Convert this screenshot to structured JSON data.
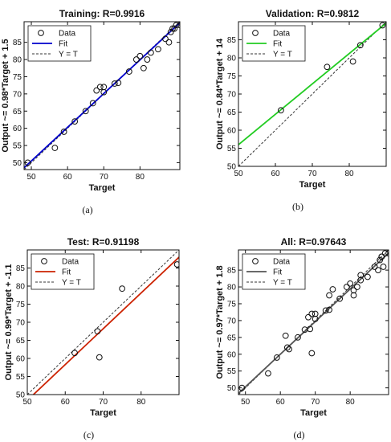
{
  "chart_data": [
    {
      "type": "scatter",
      "title": "Training: R=0.9916",
      "xlabel": "Target",
      "ylabel": "Output ~= 0.98*Target + 1.5",
      "caption": "(a)",
      "xlim": [
        48,
        91
      ],
      "ylim": [
        48,
        91
      ],
      "xticks": [
        50,
        60,
        70,
        80
      ],
      "yticks": [
        50,
        55,
        60,
        65,
        70,
        75,
        80,
        85
      ],
      "grid": false,
      "legend_position": "top-left",
      "fit_color": "#0000cc",
      "fit": {
        "slope": 0.98,
        "intercept": 1.5
      },
      "series": [
        {
          "name": "Data",
          "x": [
            49,
            56.5,
            59,
            62,
            65,
            67,
            68,
            69,
            70,
            70,
            73,
            74,
            77,
            79,
            80,
            81,
            82,
            83,
            85,
            87,
            88,
            88.5,
            89,
            89.5,
            90,
            91
          ],
          "y": [
            50,
            54.3,
            59,
            62,
            65,
            67.3,
            71,
            72,
            72,
            70.5,
            73,
            73.2,
            76.5,
            80,
            81,
            77.5,
            80,
            82,
            83,
            86,
            85,
            88,
            89,
            89,
            90,
            90
          ]
        },
        {
          "name": "Fit"
        },
        {
          "name": "Y = T"
        }
      ]
    },
    {
      "type": "scatter",
      "title": "Validation: R=0.9812",
      "xlabel": "Target",
      "ylabel": "Output ~= 0.84*Target + 14",
      "caption": "(b)",
      "xlim": [
        50,
        90
      ],
      "ylim": [
        50,
        90
      ],
      "xticks": [
        50,
        60,
        70,
        80
      ],
      "yticks": [
        50,
        55,
        60,
        65,
        70,
        75,
        80,
        85
      ],
      "grid": false,
      "legend_position": "top-left",
      "fit_color": "#22cc22",
      "fit": {
        "slope": 0.84,
        "intercept": 14
      },
      "series": [
        {
          "name": "Data",
          "x": [
            61.5,
            74,
            81,
            83,
            89
          ],
          "y": [
            65.5,
            77.5,
            79,
            83.5,
            89
          ]
        },
        {
          "name": "Fit"
        },
        {
          "name": "Y = T"
        }
      ]
    },
    {
      "type": "scatter",
      "title": "Test: R=0.91198",
      "xlabel": "Target",
      "ylabel": "Output ~= 0.99*Target + -1.1",
      "caption": "(c)",
      "xlim": [
        50,
        90
      ],
      "ylim": [
        50,
        90
      ],
      "xticks": [
        50,
        60,
        70,
        80
      ],
      "yticks": [
        50,
        55,
        60,
        65,
        70,
        75,
        80,
        85
      ],
      "grid": false,
      "legend_position": "top-left",
      "fit_color": "#cc2200",
      "fit": {
        "slope": 0.99,
        "intercept": -1.1
      },
      "series": [
        {
          "name": "Data",
          "x": [
            62.5,
            68.5,
            69,
            75,
            89.5
          ],
          "y": [
            61.5,
            67.5,
            60.3,
            79.3,
            86
          ]
        },
        {
          "name": "Fit"
        },
        {
          "name": "Y = T"
        }
      ]
    },
    {
      "type": "scatter",
      "title": "All: R=0.97643",
      "xlabel": "Target",
      "ylabel": "Output ~= 0.97*Target + 1.8",
      "caption": "(d)",
      "xlim": [
        48,
        91
      ],
      "ylim": [
        48,
        91
      ],
      "xticks": [
        50,
        60,
        70,
        80
      ],
      "yticks": [
        50,
        55,
        60,
        65,
        70,
        75,
        80,
        85
      ],
      "grid": false,
      "legend_position": "top-left",
      "fit_color": "#555555",
      "fit": {
        "slope": 0.97,
        "intercept": 1.8
      },
      "series": [
        {
          "name": "Data",
          "x": [
            49,
            56.5,
            59,
            61.5,
            62,
            62.5,
            65,
            67,
            68,
            68.5,
            69,
            69,
            70,
            70,
            73,
            74,
            74,
            75,
            77,
            79,
            80,
            81,
            81,
            82,
            83,
            83,
            85,
            87,
            88,
            88.5,
            89,
            89,
            89.5,
            90,
            91
          ],
          "y": [
            50,
            54.3,
            59,
            65.5,
            62,
            61.5,
            65,
            67.3,
            71,
            67.5,
            72,
            60.3,
            72,
            70.5,
            73,
            73.2,
            77.5,
            79.3,
            76.5,
            80,
            81,
            77.5,
            79,
            80,
            82,
            83.5,
            83,
            86,
            85,
            88,
            89,
            89,
            86,
            90,
            90
          ]
        },
        {
          "name": "Fit"
        },
        {
          "name": "Y = T"
        }
      ]
    }
  ]
}
